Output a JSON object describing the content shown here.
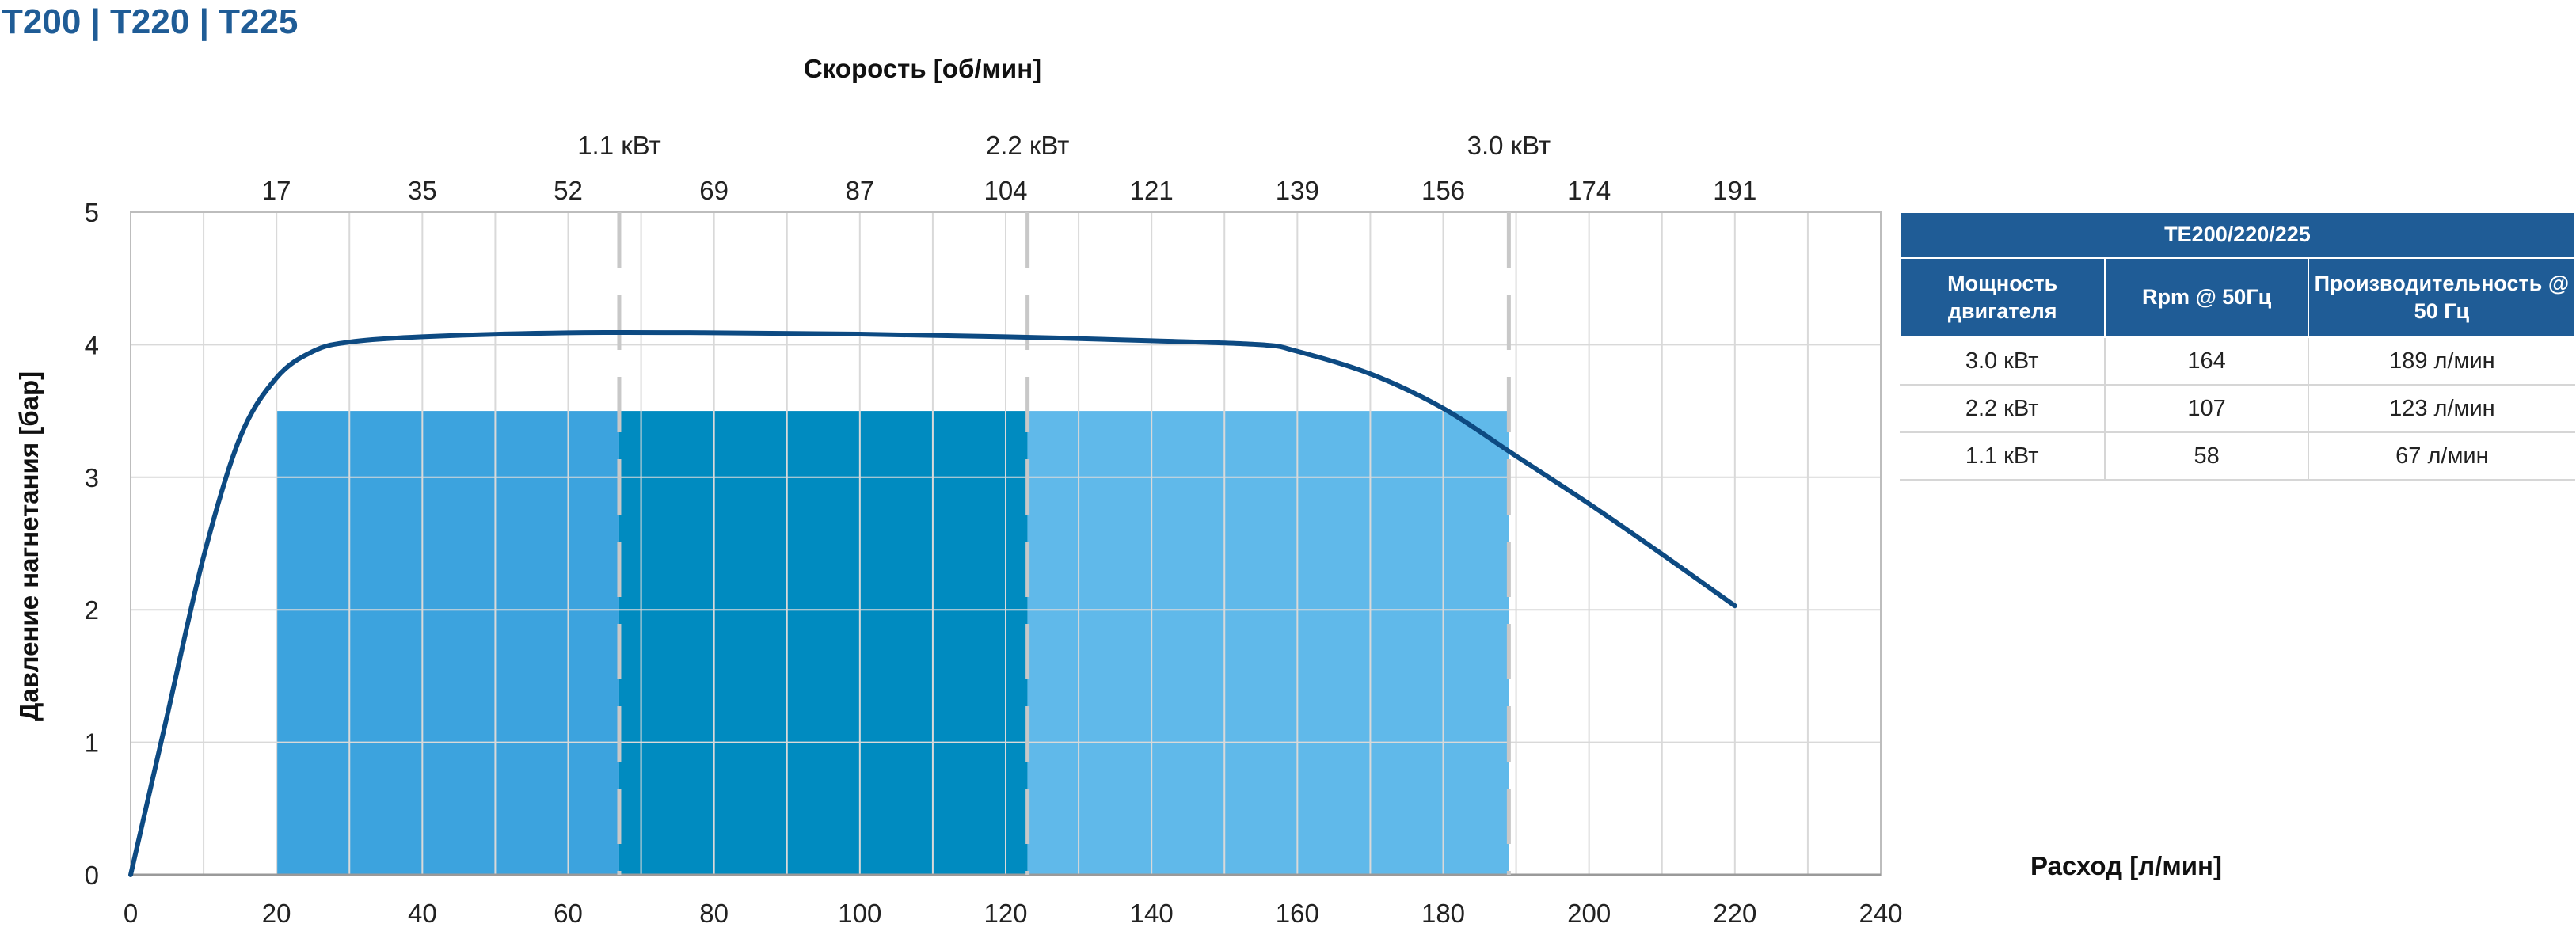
{
  "header": {
    "title": "T200 | T220 | T225"
  },
  "chart_data": {
    "type": "line",
    "title": "",
    "xlabel": "Расход [л/мин]",
    "ylabel": "Давление нагнетания [бар]",
    "top_axis_label": "Скорость [об/мин]",
    "xlim": [
      0,
      240
    ],
    "ylim": [
      0,
      5
    ],
    "x_ticks": [
      "0",
      "20",
      "40",
      "60",
      "80",
      "100",
      "120",
      "140",
      "160",
      "180",
      "200",
      "220",
      "240"
    ],
    "y_ticks": [
      "0",
      "1",
      "2",
      "3",
      "4",
      "5"
    ],
    "top_ticks": [
      {
        "x": 20,
        "label": "17"
      },
      {
        "x": 40,
        "label": "35"
      },
      {
        "x": 60,
        "label": "52"
      },
      {
        "x": 80,
        "label": "69"
      },
      {
        "x": 100,
        "label": "87"
      },
      {
        "x": 120,
        "label": "104"
      },
      {
        "x": 140,
        "label": "121"
      },
      {
        "x": 160,
        "label": "139"
      },
      {
        "x": 180,
        "label": "156"
      },
      {
        "x": 200,
        "label": "174"
      },
      {
        "x": 220,
        "label": "191"
      }
    ],
    "power_markers": [
      {
        "x": 67,
        "label": "1.1 кВт"
      },
      {
        "x": 123,
        "label": "2.2 кВт"
      },
      {
        "x": 189,
        "label": "3.0 кВт"
      }
    ],
    "regions": [
      {
        "x_from": 20,
        "x_to": 67,
        "y": 3.5,
        "color": "#3ca3de"
      },
      {
        "x_from": 67,
        "x_to": 123,
        "y": 3.5,
        "color": "#008bc0"
      },
      {
        "x_from": 123,
        "x_to": 189,
        "y": 3.5,
        "color": "#60b9ea"
      }
    ],
    "series": [
      {
        "color": "#0d4a82",
        "x": [
          0,
          5,
          10,
          15,
          20,
          25,
          30,
          40,
          60,
          80,
          100,
          120,
          140,
          155,
          160,
          170,
          180,
          190,
          200,
          210,
          220
        ],
        "y": [
          0,
          1.2,
          2.4,
          3.3,
          3.75,
          3.95,
          4.02,
          4.06,
          4.09,
          4.09,
          4.08,
          4.06,
          4.03,
          4.0,
          3.95,
          3.78,
          3.52,
          3.16,
          2.8,
          2.42,
          2.03
        ]
      }
    ],
    "grid": true
  },
  "table": {
    "title": "TE200/220/225",
    "columns": [
      "Мощность двигателя",
      "Rpm @ 50Гц",
      "Производительность @ 50 Гц"
    ],
    "rows": [
      [
        "3.0 кВт",
        "164",
        "189 л/мин"
      ],
      [
        "2.2 кВт",
        "107",
        "123 л/мин"
      ],
      [
        "1.1 кВт",
        "58",
        "67 л/мин"
      ]
    ]
  }
}
